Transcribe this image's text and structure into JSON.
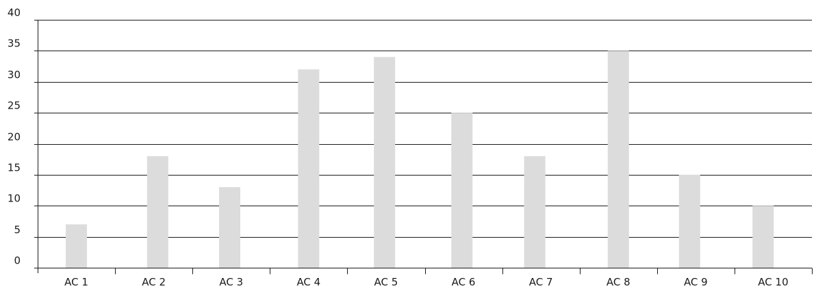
{
  "chart_data": {
    "type": "bar",
    "categories": [
      "AC 1",
      "AC 2",
      "AC 3",
      "AC 4",
      "AC 5",
      "AC 6",
      "AC 7",
      "AC 8",
      "AC 9",
      "AC 10"
    ],
    "values": [
      7,
      18,
      13,
      32,
      34,
      25,
      18,
      35,
      15,
      10
    ],
    "ylim": [
      0,
      40
    ],
    "yticks": [
      0,
      5,
      10,
      15,
      20,
      25,
      30,
      35,
      40
    ],
    "title": "",
    "xlabel": "",
    "ylabel": "",
    "grid": true,
    "legend": "none",
    "bar_color": "#dcdcdc",
    "grid_color": "#1a1a1a"
  }
}
